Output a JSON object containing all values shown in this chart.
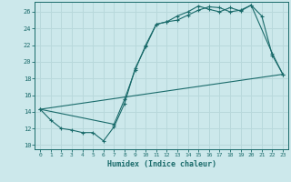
{
  "xlabel": "Humidex (Indice chaleur)",
  "ylabel": "",
  "bg_color": "#cce8eb",
  "grid_color": "#b8d8db",
  "line_color": "#1a6b6b",
  "xlim": [
    -0.5,
    23.5
  ],
  "ylim": [
    9.5,
    27.2
  ],
  "xticks": [
    0,
    1,
    2,
    3,
    4,
    5,
    6,
    7,
    8,
    9,
    10,
    11,
    12,
    13,
    14,
    15,
    16,
    17,
    18,
    19,
    20,
    21,
    22,
    23
  ],
  "yticks": [
    10,
    12,
    14,
    16,
    18,
    20,
    22,
    24,
    26
  ],
  "line1_x": [
    0,
    1,
    2,
    3,
    4,
    5,
    6,
    7,
    8,
    9,
    10,
    11,
    12,
    13,
    14,
    15,
    16,
    17,
    18,
    19,
    20,
    21,
    22,
    23
  ],
  "line1_y": [
    14.3,
    13.0,
    12.0,
    11.8,
    11.5,
    11.5,
    10.5,
    12.2,
    15.0,
    19.2,
    21.8,
    24.5,
    24.8,
    25.0,
    25.6,
    26.2,
    26.6,
    26.5,
    26.0,
    26.2,
    26.8,
    25.5,
    20.8,
    18.5
  ],
  "line2_x": [
    0,
    7,
    8,
    9,
    10,
    11,
    12,
    13,
    14,
    15,
    16,
    17,
    18,
    19,
    20,
    22,
    23
  ],
  "line2_y": [
    14.3,
    12.5,
    15.5,
    19.0,
    22.0,
    24.5,
    24.8,
    25.5,
    26.0,
    26.7,
    26.3,
    26.0,
    26.5,
    26.1,
    26.8,
    21.0,
    18.5
  ],
  "line3_x": [
    0,
    23
  ],
  "line3_y": [
    14.3,
    18.5
  ]
}
